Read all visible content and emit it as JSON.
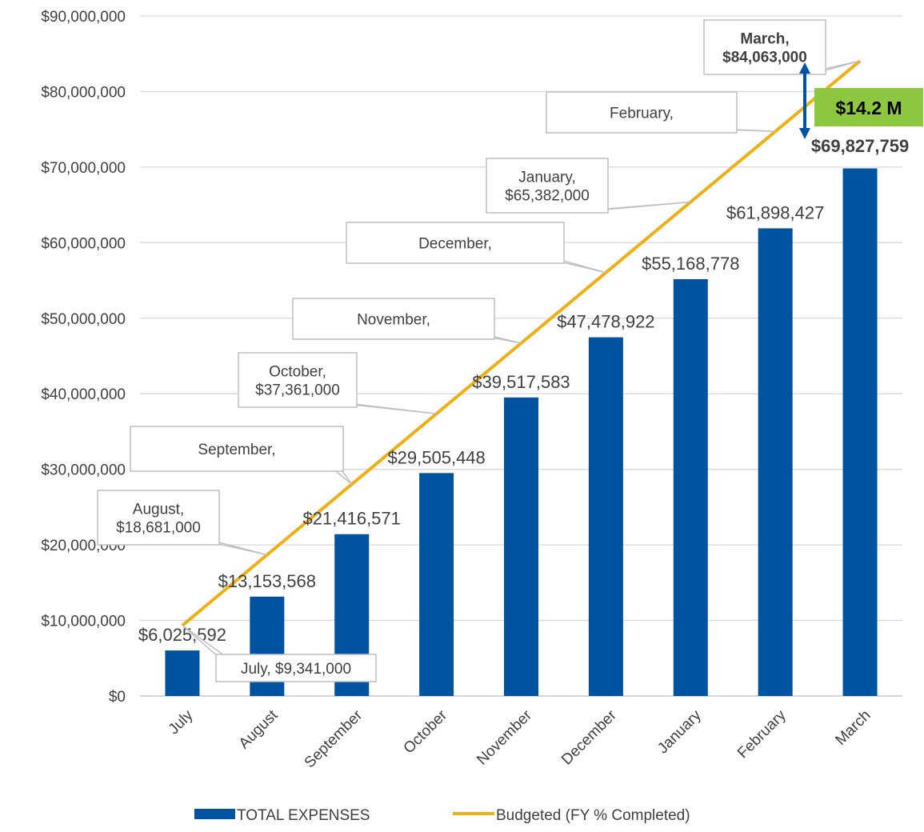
{
  "chart_data": {
    "type": "bar",
    "categories": [
      "July",
      "August",
      "September",
      "October",
      "November",
      "December",
      "January",
      "February",
      "March"
    ],
    "ylim": [
      0,
      90000000
    ],
    "y_ticks": [
      0,
      10000000,
      20000000,
      30000000,
      40000000,
      50000000,
      60000000,
      70000000,
      80000000,
      90000000
    ],
    "y_tick_labels": [
      "$0",
      "$10,000,000",
      "$20,000,000",
      "$30,000,000",
      "$40,000,000",
      "$50,000,000",
      "$60,000,000",
      "$70,000,000",
      "$80,000,000",
      "$90,000,000"
    ],
    "grid": true,
    "legend_position": "bottom",
    "series": [
      {
        "name": "TOTAL EXPENSES",
        "type": "bar",
        "color": "#0053A0",
        "values": [
          6025592,
          13153568,
          21416571,
          29505448,
          39517583,
          47478922,
          55168778,
          61898427,
          69827759
        ],
        "labels": [
          "$6,025,592",
          "$13,153,568",
          "$21,416,571",
          "$29,505,448",
          "$39,517,583",
          "$47,478,922",
          "$55,168,778",
          "$61,898,427",
          "$69,827,759"
        ]
      },
      {
        "name": "Budgeted (FY % Completed)",
        "type": "line",
        "color": "#EEB012",
        "values": [
          9341000,
          18681000,
          28022000,
          37361000,
          46702000,
          56042000,
          65382000,
          74723000,
          84063000
        ],
        "callout_lines": [
          [
            "July, $9,341,000"
          ],
          [
            "August,",
            "$18,681,000"
          ],
          [
            "September,"
          ],
          [
            "October,",
            "$37,361,000"
          ],
          [
            "November,"
          ],
          [
            "December,"
          ],
          [
            "January,",
            "$65,382,000"
          ],
          [
            "February,"
          ],
          [
            "March,",
            "$84,063,000"
          ]
        ]
      }
    ],
    "annotations": [
      {
        "text": "$14.2 M",
        "background": "#8DC63F",
        "arrow_color": "#0053A0"
      }
    ]
  }
}
